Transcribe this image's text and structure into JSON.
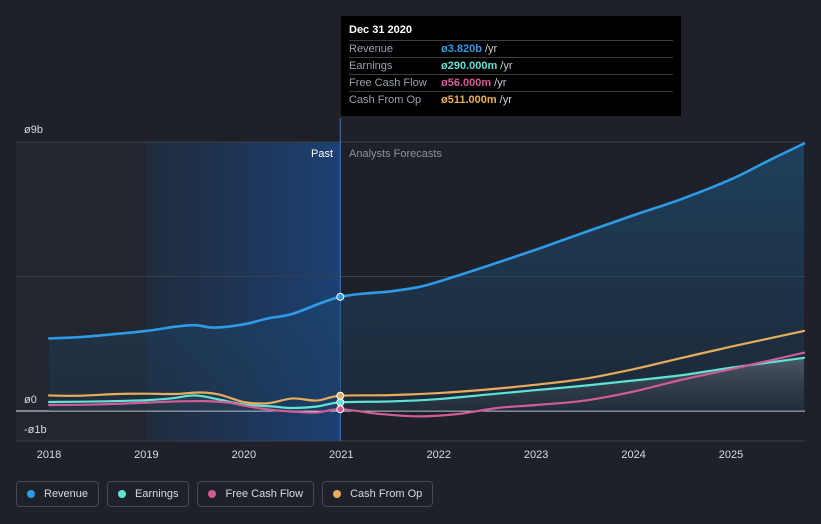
{
  "tooltip": {
    "date": "Dec 31 2020",
    "rows": [
      {
        "name": "Revenue",
        "value": "ø3.820b",
        "unit": "/yr",
        "color": "#2d9be6"
      },
      {
        "name": "Earnings",
        "value": "ø290.000m",
        "unit": "/yr",
        "color": "#5ee3d4"
      },
      {
        "name": "Free Cash Flow",
        "value": "ø56.000m",
        "unit": "/yr",
        "color": "#d35b96"
      },
      {
        "name": "Cash From Op",
        "value": "ø511.000m",
        "unit": "/yr",
        "color": "#e8ad5c"
      }
    ]
  },
  "regions": {
    "past": "Past",
    "forecast": "Analysts Forecasts"
  },
  "legend": [
    {
      "label": "Revenue",
      "color": "#2d9be6"
    },
    {
      "label": "Earnings",
      "color": "#5ee3d4"
    },
    {
      "label": "Free Cash Flow",
      "color": "#d35b96"
    },
    {
      "label": "Cash From Op",
      "color": "#e8ad5c"
    }
  ],
  "chart_data": {
    "type": "line",
    "x_ticks": [
      "2018",
      "2019",
      "2020",
      "2021",
      "2022",
      "2023",
      "2024",
      "2025"
    ],
    "y_ticks": [
      {
        "label": "ø9b",
        "value": 9.0
      },
      {
        "label": "ø0",
        "value": 0.0
      },
      {
        "label": "-ø1b",
        "value": -1.0
      }
    ],
    "ylim": [
      -1.0,
      9.0
    ],
    "xlim": [
      2017.72,
      2025.75
    ],
    "past_end": 2020.99,
    "highlight_start": 2019.0,
    "grid": true,
    "units": "billions",
    "series": [
      {
        "name": "Revenue",
        "color": "#2d9be6",
        "fill": true,
        "points": [
          [
            2018.0,
            2.43
          ],
          [
            2018.3,
            2.47
          ],
          [
            2018.6,
            2.55
          ],
          [
            2019.0,
            2.68
          ],
          [
            2019.3,
            2.82
          ],
          [
            2019.5,
            2.87
          ],
          [
            2019.7,
            2.79
          ],
          [
            2020.0,
            2.9
          ],
          [
            2020.25,
            3.1
          ],
          [
            2020.5,
            3.25
          ],
          [
            2020.99,
            3.82
          ],
          [
            2021.5,
            4.0
          ],
          [
            2021.8,
            4.15
          ],
          [
            2022.0,
            4.33
          ],
          [
            2022.5,
            4.85
          ],
          [
            2023.0,
            5.4
          ],
          [
            2023.5,
            5.98
          ],
          [
            2024.0,
            6.55
          ],
          [
            2024.5,
            7.1
          ],
          [
            2025.0,
            7.75
          ],
          [
            2025.4,
            8.4
          ],
          [
            2025.75,
            8.95
          ]
        ]
      },
      {
        "name": "Earnings",
        "color": "#5ee3d4",
        "fill": false,
        "points": [
          [
            2018.0,
            0.3
          ],
          [
            2018.5,
            0.32
          ],
          [
            2019.0,
            0.36
          ],
          [
            2019.25,
            0.42
          ],
          [
            2019.5,
            0.52
          ],
          [
            2019.75,
            0.38
          ],
          [
            2020.0,
            0.22
          ],
          [
            2020.3,
            0.15
          ],
          [
            2020.5,
            0.1
          ],
          [
            2020.75,
            0.15
          ],
          [
            2020.99,
            0.29
          ],
          [
            2021.5,
            0.32
          ],
          [
            2022.0,
            0.4
          ],
          [
            2022.5,
            0.55
          ],
          [
            2023.0,
            0.7
          ],
          [
            2023.5,
            0.85
          ],
          [
            2024.0,
            1.02
          ],
          [
            2024.5,
            1.2
          ],
          [
            2025.0,
            1.45
          ],
          [
            2025.75,
            1.78
          ]
        ]
      },
      {
        "name": "Free Cash Flow",
        "color": "#d35b96",
        "fill": false,
        "points": [
          [
            2018.0,
            0.2
          ],
          [
            2018.5,
            0.22
          ],
          [
            2019.0,
            0.28
          ],
          [
            2019.3,
            0.32
          ],
          [
            2019.6,
            0.33
          ],
          [
            2019.85,
            0.28
          ],
          [
            2020.0,
            0.18
          ],
          [
            2020.25,
            0.05
          ],
          [
            2020.5,
            -0.02
          ],
          [
            2020.75,
            -0.05
          ],
          [
            2020.99,
            0.06
          ],
          [
            2021.4,
            -0.1
          ],
          [
            2021.8,
            -0.18
          ],
          [
            2022.2,
            -0.1
          ],
          [
            2022.6,
            0.1
          ],
          [
            2023.0,
            0.2
          ],
          [
            2023.5,
            0.35
          ],
          [
            2024.0,
            0.65
          ],
          [
            2024.5,
            1.05
          ],
          [
            2025.0,
            1.4
          ],
          [
            2025.75,
            1.95
          ]
        ]
      },
      {
        "name": "Cash From Op",
        "color": "#e8ad5c",
        "fill": false,
        "points": [
          [
            2018.0,
            0.52
          ],
          [
            2018.3,
            0.51
          ],
          [
            2018.7,
            0.57
          ],
          [
            2019.0,
            0.58
          ],
          [
            2019.3,
            0.57
          ],
          [
            2019.55,
            0.62
          ],
          [
            2019.75,
            0.55
          ],
          [
            2020.0,
            0.3
          ],
          [
            2020.25,
            0.26
          ],
          [
            2020.5,
            0.42
          ],
          [
            2020.75,
            0.35
          ],
          [
            2020.99,
            0.51
          ],
          [
            2021.5,
            0.53
          ],
          [
            2022.0,
            0.6
          ],
          [
            2022.5,
            0.72
          ],
          [
            2023.0,
            0.88
          ],
          [
            2023.5,
            1.08
          ],
          [
            2024.0,
            1.4
          ],
          [
            2024.5,
            1.78
          ],
          [
            2025.0,
            2.15
          ],
          [
            2025.75,
            2.68
          ]
        ]
      }
    ]
  }
}
